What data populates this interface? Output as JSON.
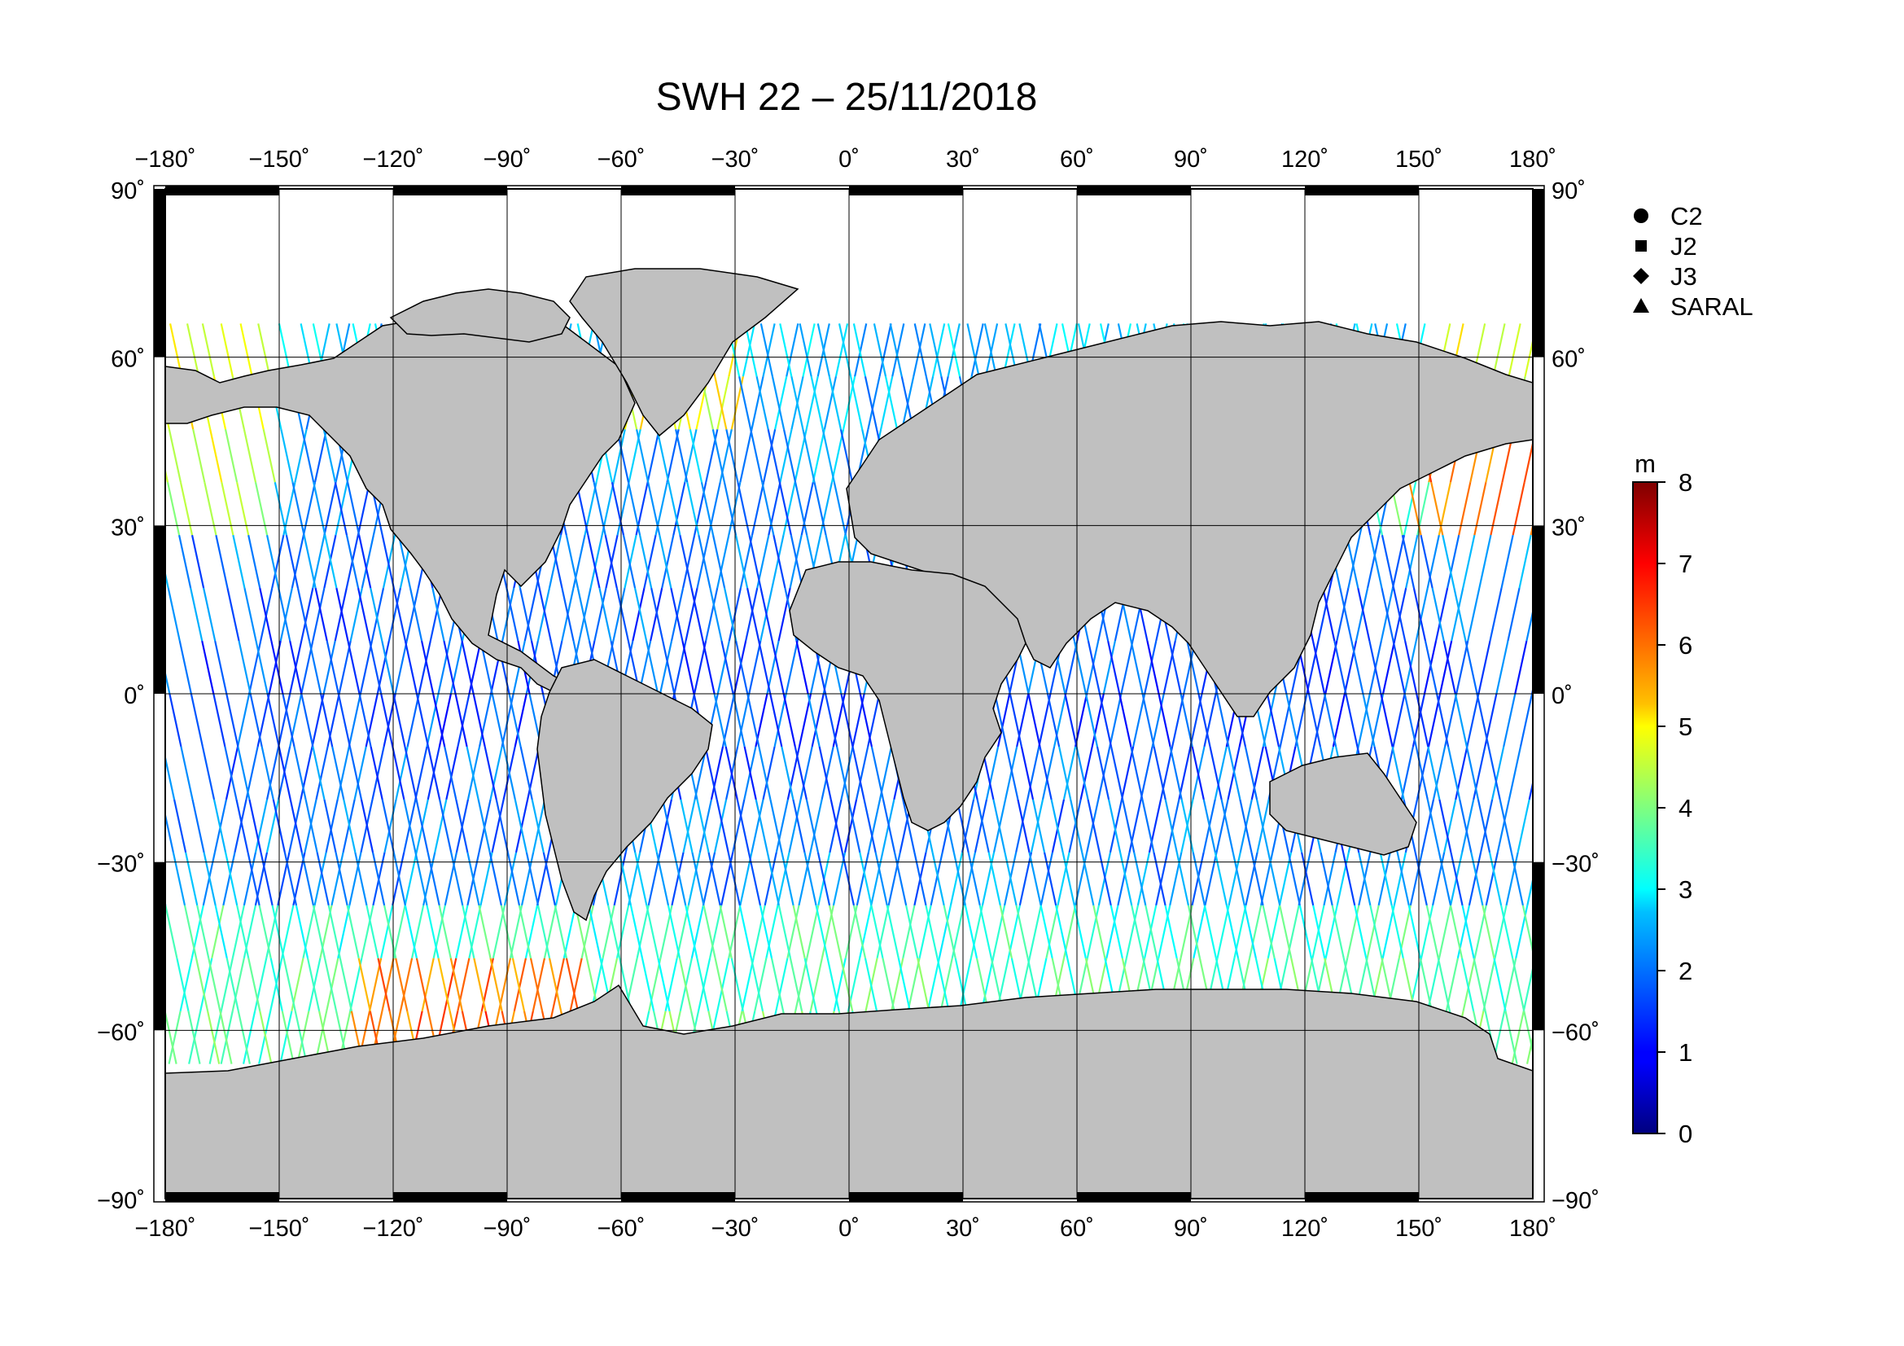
{
  "title": "SWH 22 – 25/11/2018",
  "map": {
    "lon_ticks": [
      -180,
      -150,
      -120,
      -90,
      -60,
      -30,
      0,
      30,
      60,
      90,
      120,
      150,
      180
    ],
    "lat_ticks": [
      90,
      60,
      30,
      0,
      -30,
      -60,
      -90
    ],
    "lon_tick_labels": [
      "−180˚",
      "−150˚",
      "−120˚",
      "−90˚",
      "−60˚",
      "−30˚",
      "0˚",
      "30˚",
      "60˚",
      "90˚",
      "120˚",
      "150˚",
      "180˚"
    ],
    "lat_tick_labels": [
      "90˚",
      "60˚",
      "30˚",
      "0˚",
      "−30˚",
      "−60˚",
      "−90˚"
    ],
    "land_color": "#c0c0c0",
    "ocean_color": "#ffffff"
  },
  "legend": {
    "items": [
      {
        "label": "C2",
        "marker": "circle"
      },
      {
        "label": "J2",
        "marker": "square"
      },
      {
        "label": "J3",
        "marker": "diamond"
      },
      {
        "label": "SARAL",
        "marker": "triangle"
      }
    ]
  },
  "colorbar": {
    "unit": "m",
    "min": 0,
    "max": 8,
    "ticks": [
      "0",
      "1",
      "2",
      "3",
      "4",
      "5",
      "6",
      "7",
      "8"
    ],
    "colormap": "jet"
  }
}
